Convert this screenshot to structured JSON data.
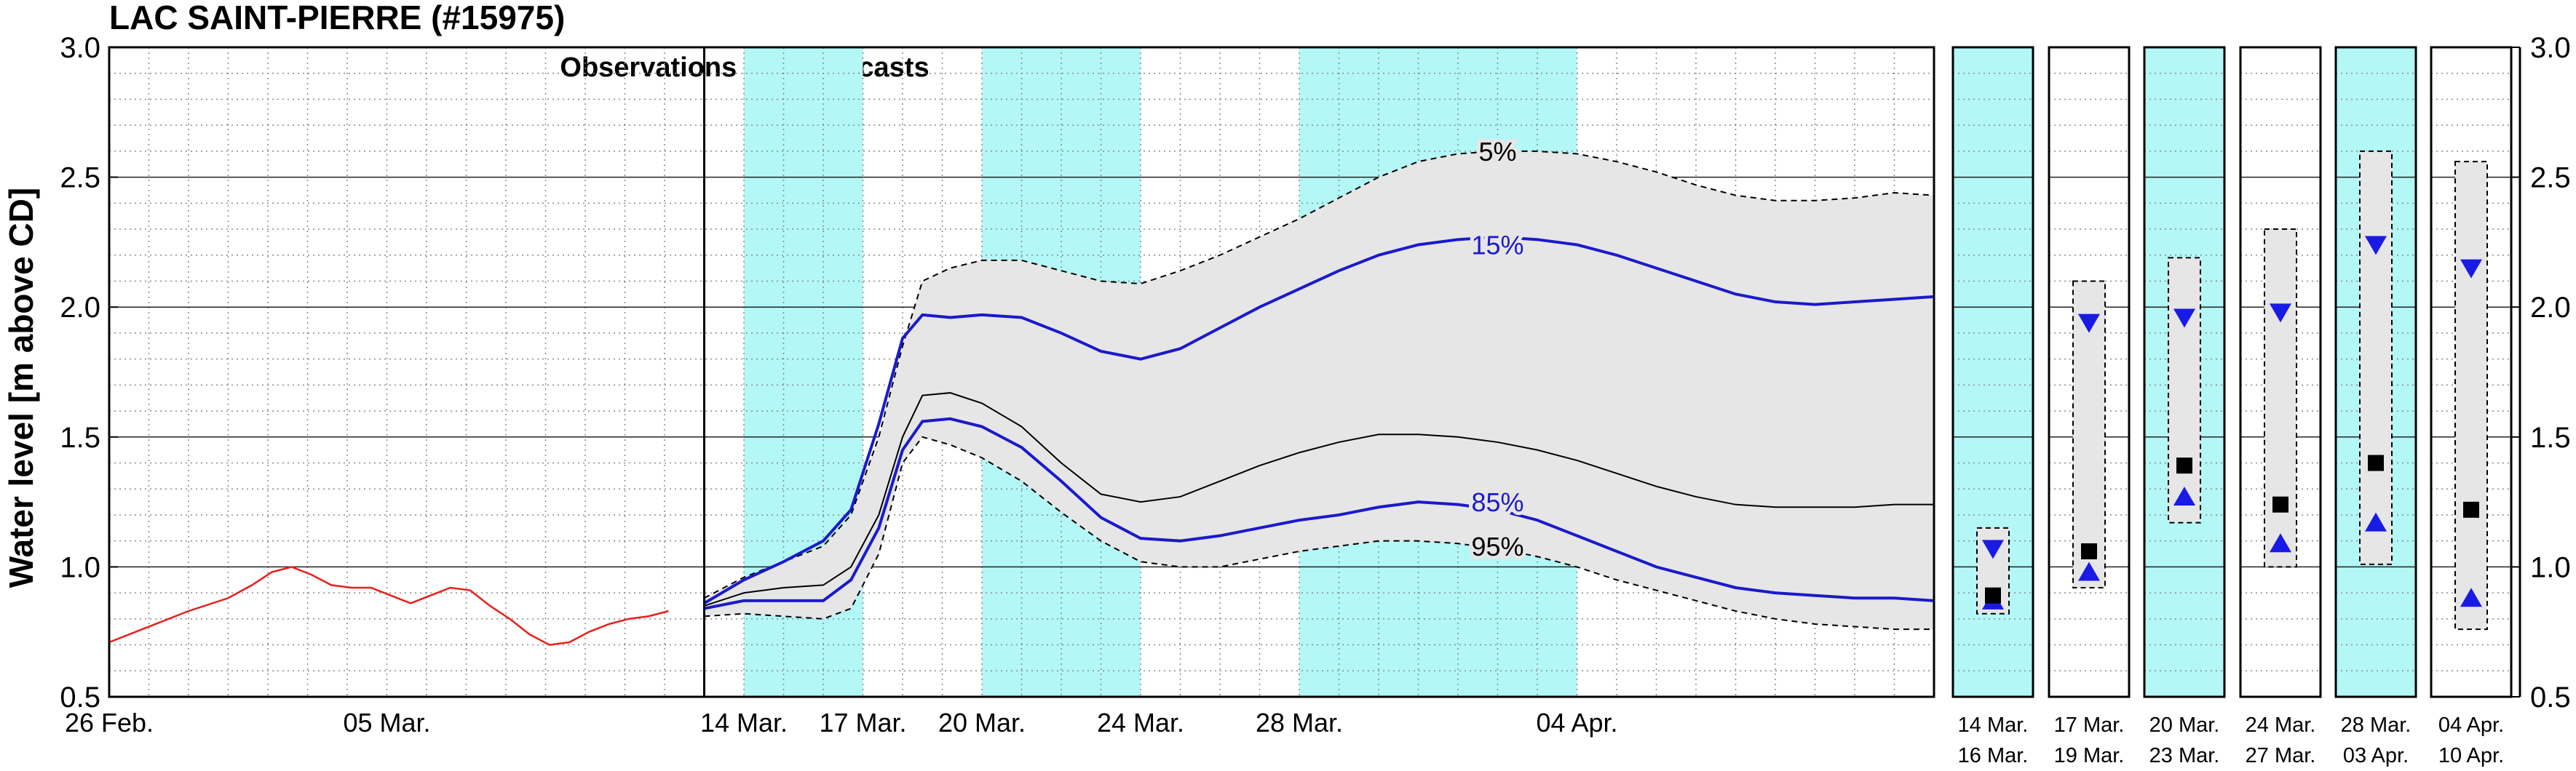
{
  "chart_data": [
    {
      "type": "line",
      "title": "LAC SAINT-PIERRE (#15975)",
      "ylabel": "Water level [m above CD]",
      "ylim": [
        0.5,
        3.0
      ],
      "yticks": [
        0.5,
        1.0,
        1.5,
        2.0,
        2.5,
        3.0
      ],
      "y_tick_labels": [
        "0.5",
        "1.0",
        "1.5",
        "2.0",
        "2.5",
        "3.0"
      ],
      "xlim_days": [
        0,
        46
      ],
      "x_tick_days": [
        0,
        7,
        16,
        19,
        22,
        26,
        30,
        37
      ],
      "x_tick_labels": [
        "26 Feb.",
        "05 Mar.",
        "14 Mar.",
        "17 Mar.",
        "20 Mar.",
        "24 Mar.",
        "28 Mar.",
        "04 Apr."
      ],
      "grid": true,
      "forecast_start_day": 15,
      "divider_label": "Observations ⇐⇒ Forecasts",
      "shaded_periods_days": [
        [
          16,
          19
        ],
        [
          22,
          26
        ],
        [
          30,
          37
        ]
      ],
      "shade_color": "#b3f7f7",
      "band_color": "#e6e6e6",
      "observed": {
        "color": "#e8201a",
        "x": [
          0,
          1,
          2,
          3,
          3.6,
          4.1,
          4.6,
          5.1,
          5.6,
          6.1,
          6.6,
          7.1,
          7.6,
          8.1,
          8.6,
          9.1,
          9.6,
          10.1,
          10.6,
          11.1,
          11.6,
          12.1,
          12.6,
          13.1,
          13.6,
          14.1
        ],
        "y": [
          0.71,
          0.77,
          0.83,
          0.88,
          0.93,
          0.98,
          1.0,
          0.97,
          0.93,
          0.92,
          0.92,
          0.89,
          0.86,
          0.89,
          0.92,
          0.91,
          0.85,
          0.8,
          0.74,
          0.7,
          0.71,
          0.75,
          0.78,
          0.8,
          0.81,
          0.83
        ]
      },
      "forecast_x": [
        15,
        16,
        17,
        18,
        18.7,
        19.4,
        20,
        20.5,
        21.2,
        22,
        23,
        24,
        25,
        26,
        27,
        28,
        29,
        30,
        31,
        32,
        33,
        34,
        35,
        36,
        37,
        38,
        39,
        40,
        41,
        42,
        43,
        44,
        45,
        46
      ],
      "envelope_top": [
        0.88,
        0.96,
        1.02,
        1.08,
        1.2,
        1.5,
        1.85,
        2.1,
        2.15,
        2.18,
        2.18,
        2.14,
        2.1,
        2.09,
        2.14,
        2.2,
        2.27,
        2.34,
        2.42,
        2.5,
        2.56,
        2.59,
        2.6,
        2.6,
        2.59,
        2.56,
        2.52,
        2.47,
        2.43,
        2.41,
        2.41,
        2.42,
        2.44,
        2.43
      ],
      "envelope_bottom": [
        0.81,
        0.82,
        0.81,
        0.8,
        0.84,
        1.05,
        1.4,
        1.5,
        1.47,
        1.42,
        1.33,
        1.21,
        1.1,
        1.02,
        1.0,
        1.0,
        1.03,
        1.06,
        1.08,
        1.1,
        1.1,
        1.09,
        1.07,
        1.04,
        1.0,
        0.95,
        0.91,
        0.87,
        0.83,
        0.8,
        0.78,
        0.77,
        0.76,
        0.76
      ],
      "series": [
        {
          "label": "15%",
          "color": "#1a1acc",
          "y": [
            0.86,
            0.95,
            1.02,
            1.1,
            1.22,
            1.55,
            1.88,
            1.97,
            1.96,
            1.97,
            1.96,
            1.9,
            1.83,
            1.8,
            1.84,
            1.92,
            2.0,
            2.07,
            2.14,
            2.2,
            2.24,
            2.26,
            2.27,
            2.26,
            2.24,
            2.2,
            2.15,
            2.1,
            2.05,
            2.02,
            2.01,
            2.02,
            2.03,
            2.04
          ]
        },
        {
          "label": "",
          "color": "#000000",
          "y": [
            0.85,
            0.9,
            0.92,
            0.93,
            1.0,
            1.2,
            1.5,
            1.66,
            1.67,
            1.63,
            1.54,
            1.4,
            1.28,
            1.25,
            1.27,
            1.33,
            1.39,
            1.44,
            1.48,
            1.51,
            1.51,
            1.5,
            1.48,
            1.45,
            1.41,
            1.36,
            1.31,
            1.27,
            1.24,
            1.23,
            1.23,
            1.23,
            1.24,
            1.24
          ]
        },
        {
          "label": "85%",
          "color": "#1a1acc",
          "y": [
            0.84,
            0.87,
            0.87,
            0.87,
            0.95,
            1.15,
            1.45,
            1.56,
            1.57,
            1.54,
            1.46,
            1.33,
            1.19,
            1.11,
            1.1,
            1.12,
            1.15,
            1.18,
            1.2,
            1.23,
            1.25,
            1.24,
            1.22,
            1.18,
            1.12,
            1.06,
            1.0,
            0.96,
            0.92,
            0.9,
            0.89,
            0.88,
            0.88,
            0.87
          ]
        }
      ],
      "annotations": [
        {
          "text": "5%",
          "day": 35,
          "y": 2.6,
          "color": "#000000"
        },
        {
          "text": "15%",
          "day": 35,
          "y": 2.24,
          "color": "#1a1acc"
        },
        {
          "text": "85%",
          "day": 35,
          "y": 1.25,
          "color": "#1a1acc"
        },
        {
          "text": "95%",
          "day": 35,
          "y": 1.08,
          "color": "#000000"
        }
      ]
    },
    {
      "type": "range_panels",
      "ylim": [
        0.5,
        3.0
      ],
      "y_tick_labels": [
        "0.5",
        "1.0",
        "1.5",
        "2.0",
        "2.5",
        "3.0"
      ],
      "panels": [
        {
          "line1": "14 Mar.",
          "line2": "16 Mar.",
          "shaded": true,
          "max": 1.15,
          "min": 0.82,
          "upper": 1.07,
          "median": 0.89,
          "lower": 0.87
        },
        {
          "line1": "17 Mar.",
          "line2": "19 Mar.",
          "shaded": false,
          "max": 2.1,
          "min": 0.92,
          "upper": 1.94,
          "median": 1.06,
          "lower": 0.98
        },
        {
          "line1": "20 Mar.",
          "line2": "23 Mar.",
          "shaded": true,
          "max": 2.19,
          "min": 1.17,
          "upper": 1.96,
          "median": 1.39,
          "lower": 1.27
        },
        {
          "line1": "24 Mar.",
          "line2": "27 Mar.",
          "shaded": false,
          "max": 2.3,
          "min": 1.0,
          "upper": 1.98,
          "median": 1.24,
          "lower": 1.09
        },
        {
          "line1": "28 Mar.",
          "line2": "03 Apr.",
          "shaded": true,
          "max": 2.6,
          "min": 1.01,
          "upper": 2.24,
          "median": 1.4,
          "lower": 1.17
        },
        {
          "line1": "04 Apr.",
          "line2": "10 Apr.",
          "shaded": false,
          "max": 2.56,
          "min": 0.76,
          "upper": 2.15,
          "median": 1.22,
          "lower": 0.88
        }
      ]
    }
  ]
}
